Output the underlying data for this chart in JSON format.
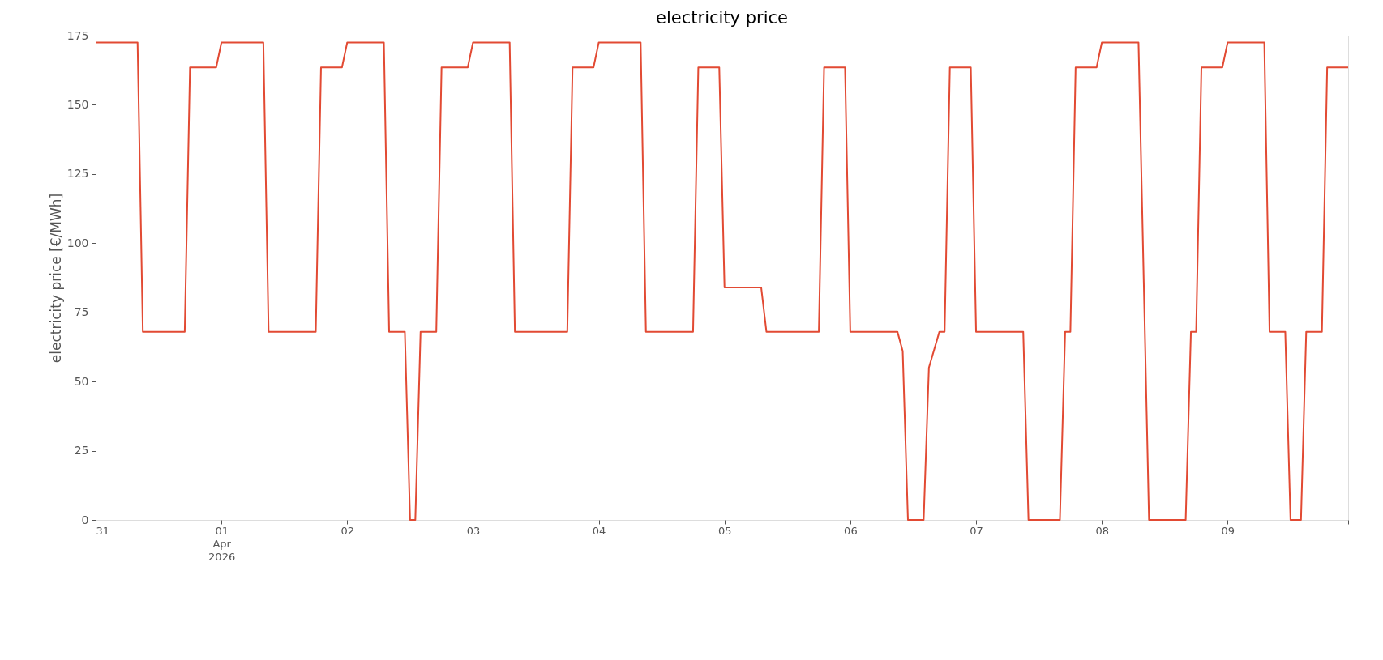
{
  "chart_data": {
    "type": "line",
    "title": "electricity price",
    "ylabel": "electricity price [€/MWh]",
    "x": [
      "2026-03-31T00:00",
      "2026-03-31T08:00",
      "2026-03-31T09:00",
      "2026-03-31T17:00",
      "2026-03-31T18:00",
      "2026-03-31T23:00",
      "2026-04-01T00:00",
      "2026-04-01T08:00",
      "2026-04-01T09:00",
      "2026-04-01T18:00",
      "2026-04-01T19:00",
      "2026-04-01T23:00",
      "2026-04-02T00:00",
      "2026-04-02T07:00",
      "2026-04-02T08:00",
      "2026-04-02T11:00",
      "2026-04-02T12:00",
      "2026-04-02T13:00",
      "2026-04-02T14:00",
      "2026-04-02T17:00",
      "2026-04-02T18:00",
      "2026-04-02T23:00",
      "2026-04-03T00:00",
      "2026-04-03T07:00",
      "2026-04-03T08:00",
      "2026-04-03T18:00",
      "2026-04-03T19:00",
      "2026-04-03T23:00",
      "2026-04-04T00:00",
      "2026-04-04T08:00",
      "2026-04-04T09:00",
      "2026-04-04T18:00",
      "2026-04-04T19:00",
      "2026-04-04T23:00",
      "2026-04-05T00:00",
      "2026-04-05T07:00",
      "2026-04-05T08:00",
      "2026-04-05T18:00",
      "2026-04-05T19:00",
      "2026-04-05T23:00",
      "2026-04-06T00:00",
      "2026-04-06T09:00",
      "2026-04-06T10:00",
      "2026-04-06T11:00",
      "2026-04-06T14:00",
      "2026-04-06T15:00",
      "2026-04-06T17:00",
      "2026-04-06T18:00",
      "2026-04-06T19:00",
      "2026-04-06T23:00",
      "2026-04-07T00:00",
      "2026-04-07T09:00",
      "2026-04-07T10:00",
      "2026-04-07T16:00",
      "2026-04-07T17:00",
      "2026-04-07T18:00",
      "2026-04-07T19:00",
      "2026-04-07T23:00",
      "2026-04-08T00:00",
      "2026-04-08T07:00",
      "2026-04-08T08:00",
      "2026-04-08T09:00",
      "2026-04-08T16:00",
      "2026-04-08T17:00",
      "2026-04-08T18:00",
      "2026-04-08T19:00",
      "2026-04-08T23:00",
      "2026-04-09T00:00",
      "2026-04-09T07:00",
      "2026-04-09T08:00",
      "2026-04-09T11:00",
      "2026-04-09T12:00",
      "2026-04-09T14:00",
      "2026-04-09T15:00",
      "2026-04-09T18:00",
      "2026-04-09T19:00",
      "2026-04-09T23:00"
    ],
    "series": [
      {
        "color": "#e24a33",
        "values": [
          172.5,
          172.5,
          68,
          68,
          163.5,
          163.5,
          172.5,
          172.5,
          68,
          68,
          163.5,
          163.5,
          172.5,
          172.5,
          68,
          68,
          0,
          0,
          68,
          68,
          163.5,
          163.5,
          172.5,
          172.5,
          68,
          68,
          163.5,
          163.5,
          172.5,
          172.5,
          68,
          68,
          163.5,
          163.5,
          84,
          84,
          68,
          68,
          163.5,
          163.5,
          68,
          68,
          61,
          0,
          0,
          55,
          68,
          68,
          163.5,
          163.5,
          68,
          68,
          0,
          0,
          68,
          68,
          163.5,
          163.5,
          172.5,
          172.5,
          86,
          0,
          0,
          68,
          68,
          163.5,
          163.5,
          172.5,
          172.5,
          68,
          68,
          0,
          0,
          68,
          68,
          163.5,
          163.5
        ]
      }
    ],
    "xlim": [
      "2026-03-31T00:00",
      "2026-04-09T23:00"
    ],
    "xticks": [
      {
        "value": "2026-03-31",
        "label": "31"
      },
      {
        "value": "2026-04-01",
        "label": "01\nApr\n2026"
      },
      {
        "value": "2026-04-02",
        "label": "02"
      },
      {
        "value": "2026-04-03",
        "label": "03"
      },
      {
        "value": "2026-04-04",
        "label": "04"
      },
      {
        "value": "2026-04-05",
        "label": "05"
      },
      {
        "value": "2026-04-06",
        "label": "06"
      },
      {
        "value": "2026-04-07",
        "label": "07"
      },
      {
        "value": "2026-04-08",
        "label": "08"
      },
      {
        "value": "2026-04-09",
        "label": "09"
      },
      {
        "value": "2026-04-09T23:00",
        "label": null
      }
    ],
    "ylim": [
      0,
      175
    ],
    "yticks": [
      0,
      25,
      50,
      75,
      100,
      125,
      150,
      175
    ],
    "grid": false,
    "legend": false,
    "line_style": "solid",
    "marker": "none"
  }
}
